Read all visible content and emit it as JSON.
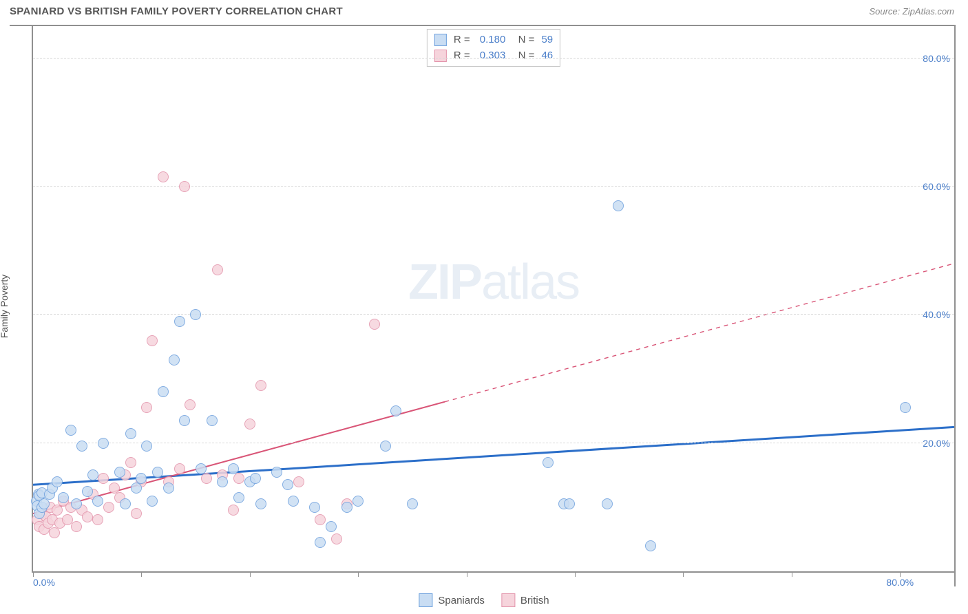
{
  "title": "SPANIARD VS BRITISH FAMILY POVERTY CORRELATION CHART",
  "source_label": "Source: ZipAtlas.com",
  "watermark": {
    "bold": "ZIP",
    "rest": "atlas"
  },
  "y_axis_label": "Family Poverty",
  "chart": {
    "type": "scatter",
    "xlim": [
      0,
      85
    ],
    "ylim": [
      0,
      85
    ],
    "x_tick_positions": [
      0,
      10,
      20,
      30,
      40,
      50,
      60,
      70,
      80
    ],
    "x_tick_labels_visible": {
      "0": "0.0%",
      "80": "80.0%"
    },
    "y_grid_positions": [
      20,
      40,
      60,
      80
    ],
    "y_tick_labels": {
      "20": "20.0%",
      "40": "40.0%",
      "60": "60.0%",
      "80": "80.0%"
    },
    "background_color": "#ffffff",
    "grid_color": "#d8d8d8",
    "axis_color": "#909090",
    "tick_label_color": "#4a7ec9",
    "point_radius": 8,
    "point_stroke_width": 1.2
  },
  "series": [
    {
      "name": "Spaniards",
      "fill": "#c9ddf3",
      "stroke": "#6ea0dd",
      "r_value": "0.180",
      "n_value": "59",
      "trend": {
        "x1": 0,
        "y1": 13.5,
        "x2": 85,
        "y2": 22.5,
        "solid_until_x": 85,
        "color": "#2c6fc9",
        "width": 3
      },
      "points": [
        [
          0.3,
          11.0
        ],
        [
          0.4,
          10.2
        ],
        [
          0.5,
          12.0
        ],
        [
          0.6,
          9.0
        ],
        [
          0.6,
          11.8
        ],
        [
          0.8,
          10.0
        ],
        [
          0.8,
          12.2
        ],
        [
          1.0,
          10.5
        ],
        [
          1.5,
          12.0
        ],
        [
          1.8,
          13.0
        ],
        [
          2.2,
          14.0
        ],
        [
          2.8,
          11.5
        ],
        [
          3.5,
          22.0
        ],
        [
          4.0,
          10.5
        ],
        [
          4.5,
          19.5
        ],
        [
          5.0,
          12.5
        ],
        [
          5.5,
          15.0
        ],
        [
          6.0,
          11.0
        ],
        [
          6.5,
          20.0
        ],
        [
          8.0,
          15.5
        ],
        [
          8.5,
          10.5
        ],
        [
          9.0,
          21.5
        ],
        [
          9.5,
          13.0
        ],
        [
          10.0,
          14.5
        ],
        [
          10.5,
          19.5
        ],
        [
          11.0,
          11.0
        ],
        [
          11.5,
          15.5
        ],
        [
          12.0,
          28.0
        ],
        [
          12.5,
          13.0
        ],
        [
          13.0,
          33.0
        ],
        [
          13.5,
          39.0
        ],
        [
          14.0,
          23.5
        ],
        [
          15.0,
          40.0
        ],
        [
          15.5,
          16.0
        ],
        [
          16.5,
          23.5
        ],
        [
          17.5,
          14.0
        ],
        [
          18.5,
          16.0
        ],
        [
          19.0,
          11.5
        ],
        [
          20.0,
          14.0
        ],
        [
          20.5,
          14.5
        ],
        [
          21.0,
          10.5
        ],
        [
          22.5,
          15.5
        ],
        [
          23.5,
          13.5
        ],
        [
          24.0,
          11.0
        ],
        [
          26.0,
          10.0
        ],
        [
          26.5,
          4.5
        ],
        [
          27.5,
          7.0
        ],
        [
          29.0,
          10.0
        ],
        [
          30.0,
          11.0
        ],
        [
          32.5,
          19.5
        ],
        [
          33.5,
          25.0
        ],
        [
          35.0,
          10.5
        ],
        [
          47.5,
          17.0
        ],
        [
          49.0,
          10.5
        ],
        [
          49.5,
          10.5
        ],
        [
          53.0,
          10.5
        ],
        [
          54.0,
          57.0
        ],
        [
          57.0,
          4.0
        ],
        [
          80.5,
          25.5
        ]
      ]
    },
    {
      "name": "British",
      "fill": "#f6d4dc",
      "stroke": "#e394ab",
      "r_value": "0.303",
      "n_value": "46",
      "trend": {
        "x1": 0,
        "y1": 9.0,
        "x2": 85,
        "y2": 48.0,
        "solid_until_x": 38,
        "color": "#d95577",
        "width": 2
      },
      "points": [
        [
          0.4,
          8.0
        ],
        [
          0.6,
          7.0
        ],
        [
          0.8,
          9.0
        ],
        [
          1.0,
          6.5
        ],
        [
          1.2,
          8.5
        ],
        [
          1.4,
          7.5
        ],
        [
          1.6,
          10.0
        ],
        [
          1.8,
          8.0
        ],
        [
          2.0,
          6.0
        ],
        [
          2.2,
          9.5
        ],
        [
          2.5,
          7.5
        ],
        [
          2.8,
          11.0
        ],
        [
          3.2,
          8.0
        ],
        [
          3.5,
          10.0
        ],
        [
          4.0,
          7.0
        ],
        [
          4.5,
          9.5
        ],
        [
          5.0,
          8.5
        ],
        [
          5.5,
          12.0
        ],
        [
          6.0,
          8.0
        ],
        [
          6.5,
          14.5
        ],
        [
          7.0,
          10.0
        ],
        [
          7.5,
          13.0
        ],
        [
          8.0,
          11.5
        ],
        [
          8.5,
          15.0
        ],
        [
          9.0,
          17.0
        ],
        [
          9.5,
          9.0
        ],
        [
          10.0,
          14.0
        ],
        [
          10.5,
          25.5
        ],
        [
          11.0,
          36.0
        ],
        [
          12.0,
          61.5
        ],
        [
          12.5,
          14.0
        ],
        [
          13.5,
          16.0
        ],
        [
          14.0,
          60.0
        ],
        [
          14.5,
          26.0
        ],
        [
          16.0,
          14.5
        ],
        [
          17.0,
          47.0
        ],
        [
          17.5,
          15.0
        ],
        [
          18.5,
          9.5
        ],
        [
          19.0,
          14.5
        ],
        [
          20.0,
          23.0
        ],
        [
          21.0,
          29.0
        ],
        [
          24.5,
          14.0
        ],
        [
          26.5,
          8.0
        ],
        [
          28.0,
          5.0
        ],
        [
          29.0,
          10.5
        ],
        [
          31.5,
          38.5
        ]
      ]
    }
  ],
  "bottom_legend": [
    {
      "label": "Spaniards",
      "fill": "#c9ddf3",
      "stroke": "#6ea0dd"
    },
    {
      "label": "British",
      "fill": "#f6d4dc",
      "stroke": "#e394ab"
    }
  ]
}
